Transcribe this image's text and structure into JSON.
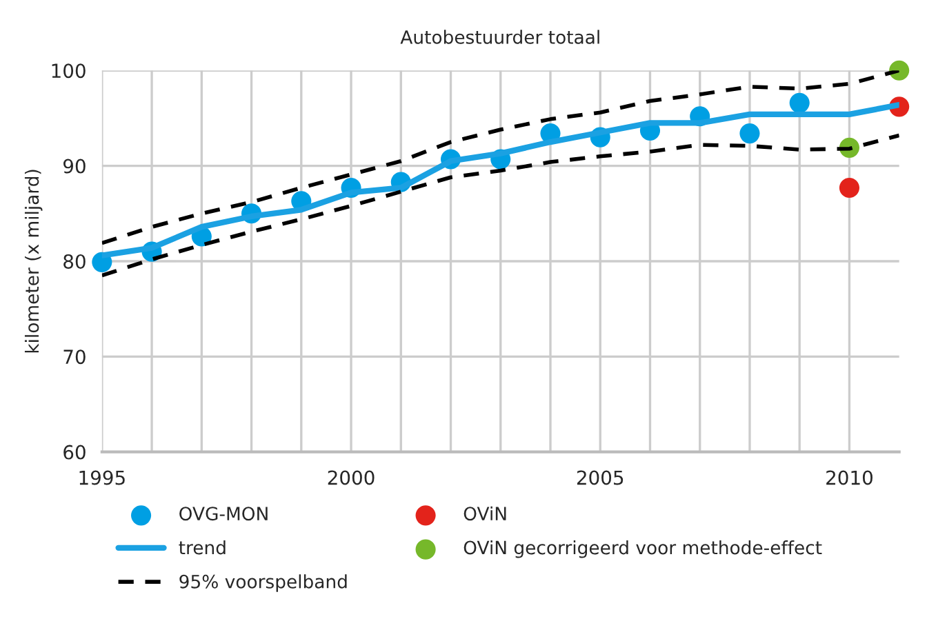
{
  "chart_data": {
    "type": "line",
    "title": "Autobestuurder totaal",
    "ylabel": "kilometer (x miljard)",
    "xlim": [
      1995,
      2011
    ],
    "ylim": [
      60,
      100
    ],
    "xticks": [
      1995,
      {
        "value": 1996,
        "label": null
      },
      {
        "value": 1997,
        "label": null
      },
      {
        "value": 1998,
        "label": null
      },
      {
        "value": 1999,
        "label": null
      },
      2000,
      {
        "value": 2001,
        "label": null
      },
      {
        "value": 2002,
        "label": null
      },
      {
        "value": 2003,
        "label": null
      },
      {
        "value": 2004,
        "label": null
      },
      2005,
      {
        "value": 2006,
        "label": null
      },
      {
        "value": 2007,
        "label": null
      },
      {
        "value": 2008,
        "label": null
      },
      {
        "value": 2009,
        "label": null
      },
      2010
    ],
    "yticks": [
      60,
      70,
      80,
      90,
      100
    ],
    "grid": true,
    "legend": "bottom",
    "series": [
      {
        "name": "OVG-MON",
        "type": "scatter",
        "marker": "circle",
        "color": "#009fe3",
        "x": [
          1995,
          1996,
          1997,
          1998,
          1999,
          2000,
          2001,
          2002,
          2003,
          2004,
          2005,
          2006,
          2007,
          2008,
          2009
        ],
        "values": [
          79.9,
          81.0,
          82.6,
          85.0,
          86.3,
          87.7,
          88.3,
          90.7,
          90.7,
          93.4,
          93.0,
          93.7,
          95.2,
          93.4,
          96.6
        ]
      },
      {
        "name": "trend",
        "marker": "none",
        "line_style": "solid",
        "color": "#1ba1e2",
        "x": [
          1995,
          1996,
          1997,
          1998,
          1999,
          2000,
          2001,
          2002,
          2003,
          2004,
          2005,
          2006,
          2007,
          2008,
          2009,
          2010,
          2011
        ],
        "values": [
          80.6,
          81.4,
          83.6,
          84.7,
          85.4,
          87.2,
          87.7,
          90.5,
          91.3,
          92.5,
          93.5,
          94.5,
          94.5,
          95.4,
          95.4,
          95.4,
          96.4
        ]
      },
      {
        "name": "95% voorspelband",
        "marker": "none",
        "line_style": "dashed",
        "color": "#000000",
        "x": [
          1995,
          1996,
          1997,
          1998,
          1999,
          2000,
          2001,
          2002,
          2003,
          2004,
          2005,
          2006,
          2007,
          2008,
          2009,
          2010,
          2011
        ],
        "values": [
          81.9,
          83.6,
          85.0,
          86.2,
          87.7,
          89.1,
          90.5,
          92.5,
          93.8,
          94.9,
          95.6,
          96.8,
          97.5,
          98.3,
          98.1,
          98.6,
          100
        ]
      },
      {
        "name": "OViN",
        "type": "scatter",
        "marker": "circle",
        "color": "#e3231b",
        "x": [
          2010,
          2011
        ],
        "values": [
          87.7,
          96.2
        ]
      },
      {
        "name": "OViN gecorrigeerd voor methode-effect",
        "type": "scatter",
        "marker": "circle",
        "color": "#76b82a",
        "x": [
          2010,
          2011
        ],
        "values": [
          91.9,
          100
        ]
      },
      {
        "marker": "none",
        "line_style": "dashed",
        "color": "#000000",
        "x": [
          1995,
          1996,
          1997,
          1998,
          1999,
          2000,
          2001,
          2002,
          2003,
          2004,
          2005,
          2006,
          2007,
          2008,
          2009,
          2010,
          2011
        ],
        "values": [
          78.5,
          80.2,
          81.7,
          83.1,
          84.4,
          85.8,
          87.3,
          88.8,
          89.5,
          90.4,
          91.0,
          91.5,
          92.2,
          92.1,
          91.7,
          91.8,
          93.2
        ]
      }
    ]
  }
}
